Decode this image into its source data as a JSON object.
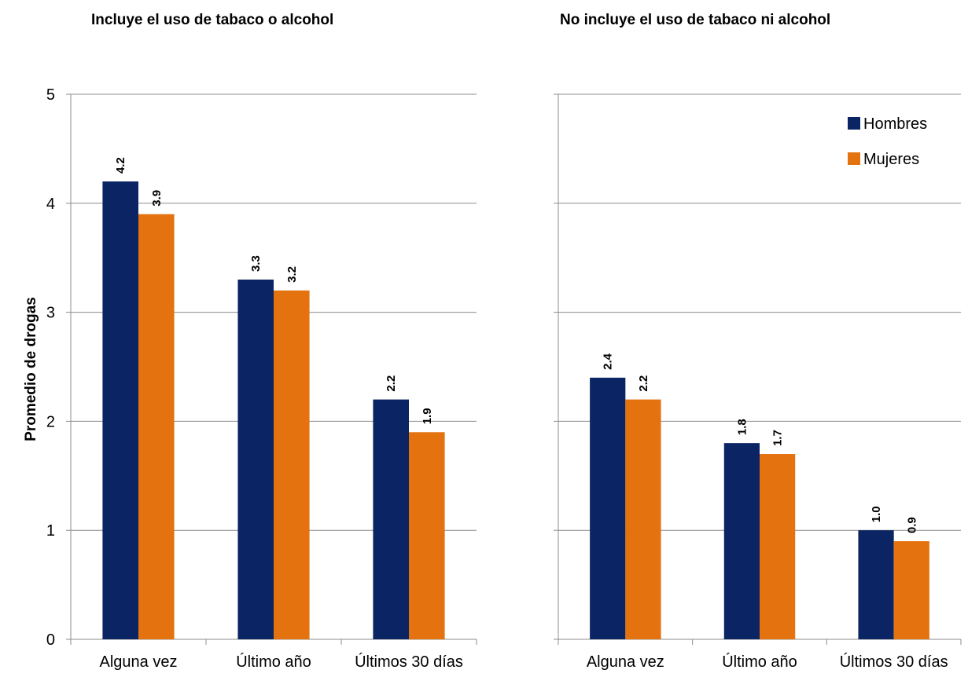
{
  "colors": {
    "hombres": "#0b2463",
    "mujeres": "#e3720f",
    "grid": "#8c8c8c",
    "axis": "#8c8c8c"
  },
  "ylabel": "Promedio de drogas",
  "yticks": [
    "0",
    "1",
    "2",
    "3",
    "4",
    "5"
  ],
  "legend": {
    "placement": "top-right",
    "entries": [
      "Hombres",
      "Mujeres"
    ]
  },
  "chart_data": [
    {
      "type": "bar",
      "title": "Incluye el uso de tabaco o alcohol",
      "categories": [
        "Alguna vez",
        "Último año",
        "Últimos 30 días"
      ],
      "series": [
        {
          "name": "Hombres",
          "values": [
            4.2,
            3.3,
            2.2
          ],
          "labels": [
            "4.2",
            "3.3",
            "2.2"
          ]
        },
        {
          "name": "Mujeres",
          "values": [
            3.9,
            3.2,
            1.9
          ],
          "labels": [
            "3.9",
            "3.2",
            "1.9"
          ]
        }
      ],
      "ylabel": "Promedio de drogas",
      "ylim": [
        0,
        5
      ],
      "grid": true
    },
    {
      "type": "bar",
      "title": "No incluye el uso de tabaco ni alcohol",
      "categories": [
        "Alguna vez",
        "Último año",
        "Últimos 30 días"
      ],
      "series": [
        {
          "name": "Hombres",
          "values": [
            2.4,
            1.8,
            1.0
          ],
          "labels": [
            "2.4",
            "1.8",
            "1.0"
          ]
        },
        {
          "name": "Mujeres",
          "values": [
            2.2,
            1.7,
            0.9
          ],
          "labels": [
            "2.2",
            "1.7",
            "0.9"
          ]
        }
      ],
      "ylim": [
        0,
        5
      ],
      "grid": true
    }
  ]
}
